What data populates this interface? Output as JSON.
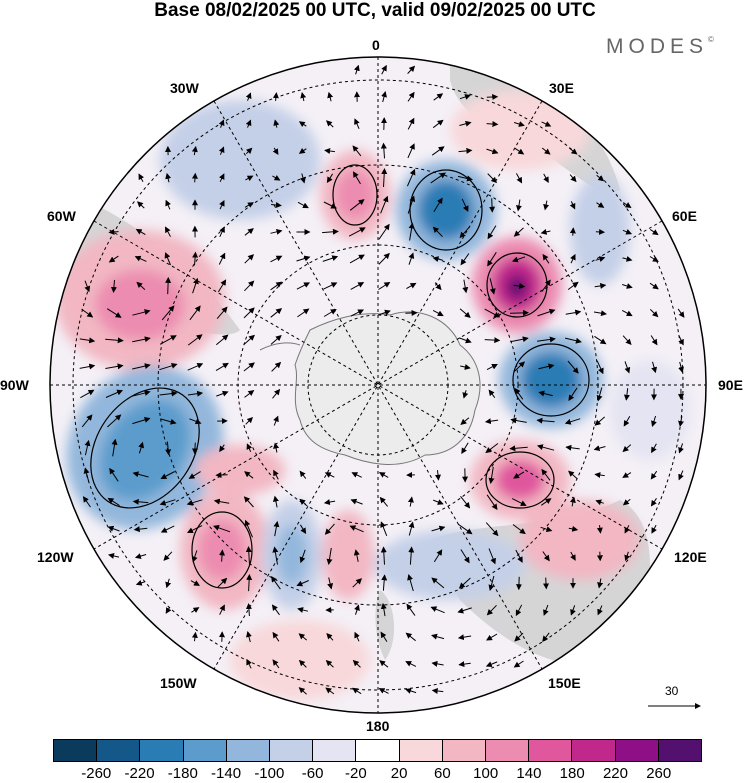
{
  "title": "Base 08/02/2025 00 UTC, valid 09/02/2025 00 UTC",
  "logo": "MODES",
  "logo_mark": "©",
  "longitude_labels": {
    "top": "0",
    "upper_left": "30W",
    "upper_right": "30E",
    "left_upper": "60W",
    "right_upper": "60E",
    "left": "90W",
    "right": "90E",
    "left_lower": "120W",
    "right_lower": "120E",
    "lower_left": "150W",
    "lower_right": "150E",
    "bottom": "180"
  },
  "reference_vector": "30",
  "colorbar": {
    "colors": [
      "#0b3b5c",
      "#14588a",
      "#2a7cb5",
      "#5c9ccc",
      "#93b7dc",
      "#c4d0e8",
      "#e4e4f2",
      "#ffffff",
      "#f8d8da",
      "#f2b7c3",
      "#ec8cb0",
      "#e0579d",
      "#c1288c",
      "#8e0f86",
      "#54106e"
    ],
    "labels": [
      "-260",
      "-220",
      "-180",
      "-140",
      "-100",
      "-60",
      "-20",
      "20",
      "60",
      "100",
      "140",
      "180",
      "220",
      "260"
    ]
  },
  "map": {
    "projection": "south-polar-stereographic",
    "antarctica_fill": "#ececec",
    "land_fill": "#c8c8c8",
    "pressure_levels_legend": "geopotential-anomaly"
  }
}
